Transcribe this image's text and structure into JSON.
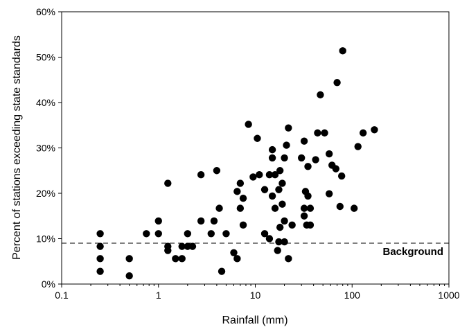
{
  "chart_data": {
    "type": "scatter",
    "title": "",
    "xlabel": "Rainfall (mm)",
    "ylabel": "Percent of stations exceeding state standards",
    "x_scale": "log",
    "xlim": [
      0.1,
      1000
    ],
    "ylim": [
      0,
      60
    ],
    "x_ticks": [
      {
        "value": 0.1,
        "label": "0.1"
      },
      {
        "value": 1,
        "label": "1"
      },
      {
        "value": 10,
        "label": "10"
      },
      {
        "value": 100,
        "label": "100"
      },
      {
        "value": 1000,
        "label": "1000"
      }
    ],
    "y_ticks": [
      {
        "value": 0,
        "label": "0%"
      },
      {
        "value": 10,
        "label": "10%"
      },
      {
        "value": 20,
        "label": "20%"
      },
      {
        "value": 30,
        "label": "30%"
      },
      {
        "value": 40,
        "label": "40%"
      },
      {
        "value": 50,
        "label": "50%"
      },
      {
        "value": 60,
        "label": "60%"
      }
    ],
    "grid": false,
    "reference_line": {
      "y": 9,
      "style": "dashed",
      "label": "Background"
    },
    "marker_color": "#000000",
    "points": [
      {
        "x": 0.25,
        "y": 11.1
      },
      {
        "x": 0.25,
        "y": 8.3
      },
      {
        "x": 0.25,
        "y": 5.6
      },
      {
        "x": 0.25,
        "y": 2.8
      },
      {
        "x": 0.5,
        "y": 5.6
      },
      {
        "x": 0.5,
        "y": 1.8
      },
      {
        "x": 0.75,
        "y": 11.1
      },
      {
        "x": 1.0,
        "y": 13.9
      },
      {
        "x": 1.0,
        "y": 11.1
      },
      {
        "x": 1.25,
        "y": 22.2
      },
      {
        "x": 1.25,
        "y": 8.3
      },
      {
        "x": 1.25,
        "y": 7.4
      },
      {
        "x": 1.5,
        "y": 5.6
      },
      {
        "x": 1.75,
        "y": 8.3
      },
      {
        "x": 1.75,
        "y": 5.6
      },
      {
        "x": 2.0,
        "y": 11.1
      },
      {
        "x": 2.0,
        "y": 8.3
      },
      {
        "x": 2.25,
        "y": 8.3
      },
      {
        "x": 2.75,
        "y": 24.1
      },
      {
        "x": 2.75,
        "y": 13.9
      },
      {
        "x": 3.5,
        "y": 11.1
      },
      {
        "x": 3.75,
        "y": 13.9
      },
      {
        "x": 4.0,
        "y": 25.0
      },
      {
        "x": 4.25,
        "y": 16.7
      },
      {
        "x": 4.5,
        "y": 2.8
      },
      {
        "x": 5.0,
        "y": 11.1
      },
      {
        "x": 6.0,
        "y": 6.9
      },
      {
        "x": 6.5,
        "y": 20.4
      },
      {
        "x": 6.5,
        "y": 5.6
      },
      {
        "x": 7.0,
        "y": 22.2
      },
      {
        "x": 7.0,
        "y": 16.7
      },
      {
        "x": 7.5,
        "y": 18.9
      },
      {
        "x": 7.5,
        "y": 13.0
      },
      {
        "x": 8.5,
        "y": 35.2
      },
      {
        "x": 9.5,
        "y": 23.6
      },
      {
        "x": 10.5,
        "y": 32.1
      },
      {
        "x": 11.0,
        "y": 24.1
      },
      {
        "x": 12.5,
        "y": 20.8
      },
      {
        "x": 12.5,
        "y": 11.1
      },
      {
        "x": 14.0,
        "y": 24.1
      },
      {
        "x": 14.0,
        "y": 10.0
      },
      {
        "x": 15.0,
        "y": 29.6
      },
      {
        "x": 15.0,
        "y": 27.8
      },
      {
        "x": 15.0,
        "y": 19.4
      },
      {
        "x": 16.0,
        "y": 24.1
      },
      {
        "x": 16.0,
        "y": 16.7
      },
      {
        "x": 17.0,
        "y": 7.4
      },
      {
        "x": 17.5,
        "y": 20.8
      },
      {
        "x": 17.5,
        "y": 9.3
      },
      {
        "x": 18.0,
        "y": 25.0
      },
      {
        "x": 18.0,
        "y": 12.5
      },
      {
        "x": 19.0,
        "y": 22.2
      },
      {
        "x": 19.0,
        "y": 17.6
      },
      {
        "x": 20.0,
        "y": 27.8
      },
      {
        "x": 20.0,
        "y": 13.9
      },
      {
        "x": 20.0,
        "y": 9.3
      },
      {
        "x": 21.0,
        "y": 30.6
      },
      {
        "x": 22.0,
        "y": 34.4
      },
      {
        "x": 22.0,
        "y": 5.6
      },
      {
        "x": 24.0,
        "y": 13.0
      },
      {
        "x": 30.0,
        "y": 27.8
      },
      {
        "x": 32.0,
        "y": 31.5
      },
      {
        "x": 32.0,
        "y": 16.7
      },
      {
        "x": 32.0,
        "y": 15.0
      },
      {
        "x": 33.0,
        "y": 20.4
      },
      {
        "x": 34.0,
        "y": 13.0
      },
      {
        "x": 35.0,
        "y": 25.9
      },
      {
        "x": 35.0,
        "y": 19.4
      },
      {
        "x": 37.0,
        "y": 16.7
      },
      {
        "x": 37.0,
        "y": 13.0
      },
      {
        "x": 42.0,
        "y": 27.4
      },
      {
        "x": 44.0,
        "y": 33.3
      },
      {
        "x": 47.0,
        "y": 41.7
      },
      {
        "x": 52.0,
        "y": 33.3
      },
      {
        "x": 58.0,
        "y": 28.7
      },
      {
        "x": 58.0,
        "y": 19.9
      },
      {
        "x": 62.0,
        "y": 26.2
      },
      {
        "x": 68.0,
        "y": 25.4
      },
      {
        "x": 70.0,
        "y": 44.4
      },
      {
        "x": 75.0,
        "y": 17.1
      },
      {
        "x": 78.0,
        "y": 23.8
      },
      {
        "x": 80.0,
        "y": 51.4
      },
      {
        "x": 105.0,
        "y": 16.7
      },
      {
        "x": 115.0,
        "y": 30.3
      },
      {
        "x": 130.0,
        "y": 33.3
      },
      {
        "x": 170.0,
        "y": 34.0
      }
    ]
  }
}
